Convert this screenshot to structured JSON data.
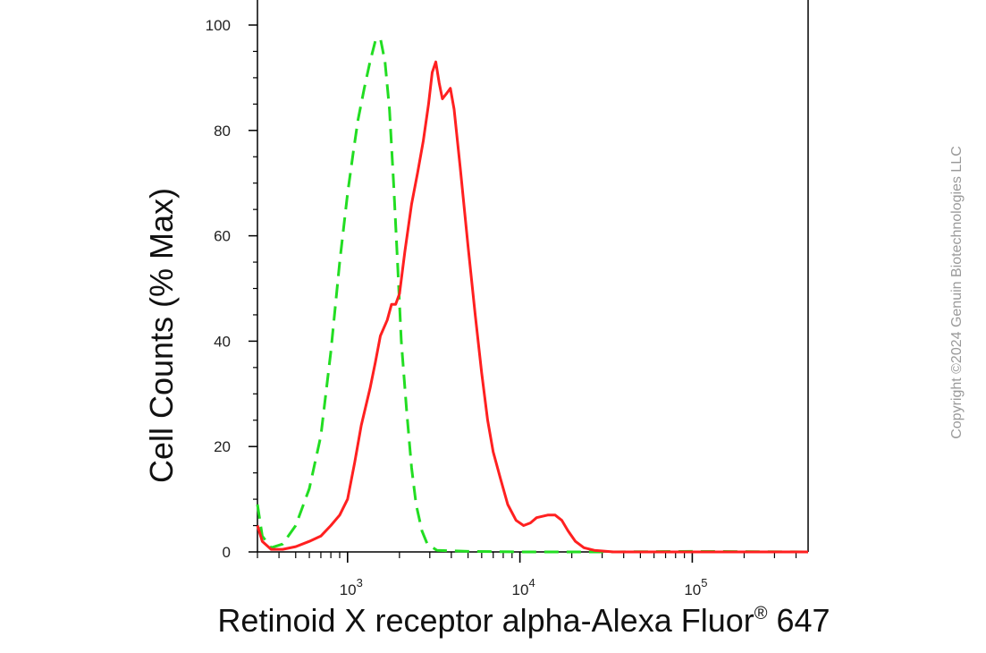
{
  "chart_data": {
    "type": "line",
    "title": "",
    "xlabel": "Retinoid X receptor alpha-Alexa Fluor",
    "xlabel_sup": "®",
    "xlabel_suffix": " 647",
    "ylabel": "Cell Counts (% Max)",
    "xscale": "log",
    "xlim": [
      300,
      470000
    ],
    "ylim": [
      0,
      100
    ],
    "y_ticks": [
      0,
      20,
      40,
      60,
      80,
      100
    ],
    "x_tick_labels": [
      {
        "base": "10",
        "exp": "3",
        "value": 1000
      },
      {
        "base": "10",
        "exp": "4",
        "value": 10000
      },
      {
        "base": "10",
        "exp": "5",
        "value": 100000
      }
    ],
    "grid": false,
    "series": [
      {
        "color": "#22dd22",
        "dash": true,
        "points": [
          [
            300,
            9
          ],
          [
            320,
            3
          ],
          [
            360,
            0.8
          ],
          [
            420,
            1.5
          ],
          [
            500,
            5
          ],
          [
            600,
            12
          ],
          [
            700,
            22
          ],
          [
            800,
            38
          ],
          [
            900,
            55
          ],
          [
            1000,
            68
          ],
          [
            1080,
            76
          ],
          [
            1150,
            82
          ],
          [
            1250,
            88
          ],
          [
            1350,
            93
          ],
          [
            1450,
            97
          ],
          [
            1550,
            97.5
          ],
          [
            1650,
            93
          ],
          [
            1750,
            84
          ],
          [
            1850,
            70
          ],
          [
            1950,
            55
          ],
          [
            2050,
            40
          ],
          [
            2200,
            27
          ],
          [
            2350,
            16
          ],
          [
            2500,
            9
          ],
          [
            2700,
            4
          ],
          [
            2900,
            1.5
          ],
          [
            3300,
            0.3
          ],
          [
            5000,
            0.1
          ],
          [
            10000,
            0
          ],
          [
            30000,
            0
          ],
          [
            100000,
            0.1
          ],
          [
            470000,
            0
          ]
        ]
      },
      {
        "color": "#ff2020",
        "dash": false,
        "points": [
          [
            300,
            5
          ],
          [
            320,
            2
          ],
          [
            360,
            0.5
          ],
          [
            420,
            0.5
          ],
          [
            500,
            1
          ],
          [
            600,
            2
          ],
          [
            700,
            3
          ],
          [
            800,
            5
          ],
          [
            900,
            7
          ],
          [
            1000,
            10
          ],
          [
            1100,
            17
          ],
          [
            1200,
            24
          ],
          [
            1350,
            31
          ],
          [
            1450,
            36
          ],
          [
            1550,
            41
          ],
          [
            1700,
            44
          ],
          [
            1800,
            47
          ],
          [
            1900,
            47
          ],
          [
            2000,
            49
          ],
          [
            2150,
            57
          ],
          [
            2350,
            66
          ],
          [
            2550,
            72
          ],
          [
            2750,
            78
          ],
          [
            2950,
            85
          ],
          [
            3100,
            91
          ],
          [
            3250,
            93
          ],
          [
            3400,
            89
          ],
          [
            3550,
            86
          ],
          [
            3750,
            87
          ],
          [
            3950,
            88
          ],
          [
            4150,
            84
          ],
          [
            4500,
            73
          ],
          [
            5000,
            58
          ],
          [
            5500,
            45
          ],
          [
            6000,
            34
          ],
          [
            6500,
            25
          ],
          [
            7000,
            19
          ],
          [
            7700,
            14
          ],
          [
            8500,
            9
          ],
          [
            9500,
            6
          ],
          [
            10500,
            5
          ],
          [
            11500,
            5.5
          ],
          [
            12500,
            6.5
          ],
          [
            14500,
            7
          ],
          [
            16000,
            7
          ],
          [
            17500,
            6
          ],
          [
            19000,
            4
          ],
          [
            21000,
            2
          ],
          [
            23500,
            0.8
          ],
          [
            27000,
            0.3
          ],
          [
            35000,
            0
          ],
          [
            80000,
            0
          ],
          [
            200000,
            0
          ],
          [
            470000,
            0
          ]
        ]
      }
    ]
  },
  "copyright": "Copyright ©2024 Genuin Biotechnologies LLC"
}
